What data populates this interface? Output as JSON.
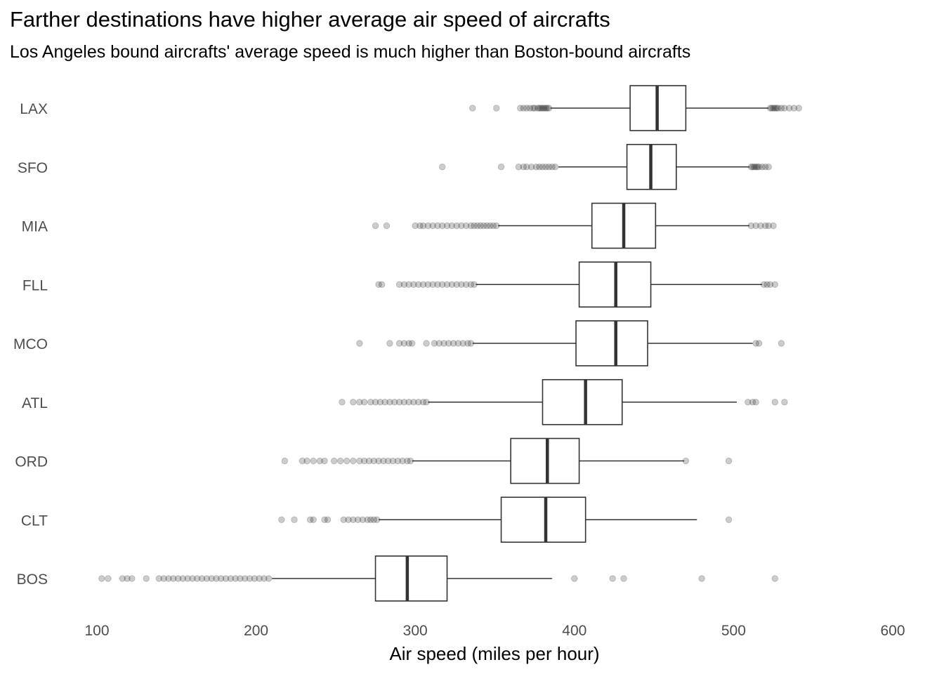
{
  "chart_data": {
    "type": "boxplot",
    "title": "Farther destinations have higher average air speed of aircrafts",
    "subtitle": "Los Angeles bound aircrafts' average speed is much higher than Boston-bound aircrafts",
    "xlabel": "Air speed (miles per hour)",
    "ylabel": "",
    "xlim": [
      100,
      600
    ],
    "xticks": [
      "100",
      "200",
      "300",
      "400",
      "500",
      "600"
    ],
    "grid": false,
    "series": [
      {
        "category": "LAX",
        "q1": 435,
        "median": 452,
        "q3": 470,
        "whisker_low": 385,
        "whisker_high": 522,
        "outliers": [
          336,
          351,
          366,
          368,
          370,
          372,
          374,
          375,
          377,
          378,
          379,
          380,
          381,
          382,
          383,
          384,
          523,
          524,
          525,
          526,
          527,
          528,
          530,
          532,
          535,
          538,
          541
        ]
      },
      {
        "category": "SFO",
        "q1": 433,
        "median": 448,
        "q3": 464,
        "whisker_low": 390,
        "whisker_high": 510,
        "outliers": [
          317,
          354,
          365,
          368,
          370,
          373,
          376,
          378,
          380,
          382,
          384,
          386,
          388,
          511,
          512,
          513,
          514,
          515,
          516,
          518,
          520,
          522
        ]
      },
      {
        "category": "MIA",
        "q1": 411,
        "median": 431,
        "q3": 451,
        "whisker_low": 352,
        "whisker_high": 510,
        "outliers": [
          275,
          282,
          300,
          303,
          305,
          308,
          311,
          314,
          317,
          320,
          323,
          326,
          329,
          332,
          335,
          337,
          339,
          341,
          343,
          345,
          347,
          349,
          351,
          511,
          514,
          517,
          520,
          522,
          525
        ]
      },
      {
        "category": "FLL",
        "q1": 403,
        "median": 426,
        "q3": 448,
        "whisker_low": 338,
        "whisker_high": 518,
        "outliers": [
          277,
          279,
          290,
          293,
          296,
          299,
          302,
          305,
          308,
          311,
          314,
          317,
          320,
          323,
          326,
          329,
          332,
          335,
          337,
          519,
          521,
          523,
          526
        ]
      },
      {
        "category": "MCO",
        "q1": 401,
        "median": 426,
        "q3": 446,
        "whisker_low": 336,
        "whisker_high": 512,
        "outliers": [
          265,
          284,
          290,
          293,
          296,
          298,
          307,
          312,
          315,
          318,
          321,
          324,
          327,
          330,
          333,
          335,
          514,
          516,
          530
        ]
      },
      {
        "category": "ATL",
        "q1": 380,
        "median": 407,
        "q3": 430,
        "whisker_low": 308,
        "whisker_high": 502,
        "outliers": [
          254,
          261,
          265,
          268,
          272,
          275,
          278,
          281,
          284,
          287,
          290,
          293,
          296,
          299,
          302,
          305,
          307,
          509,
          512,
          514,
          526,
          532
        ]
      },
      {
        "category": "ORD",
        "q1": 360,
        "median": 383,
        "q3": 403,
        "whisker_low": 298,
        "whisker_high": 469,
        "outliers": [
          218,
          229,
          232,
          236,
          240,
          243,
          249,
          253,
          257,
          261,
          265,
          268,
          271,
          274,
          277,
          280,
          283,
          286,
          289,
          292,
          295,
          297,
          470,
          497
        ]
      },
      {
        "category": "CLT",
        "q1": 354,
        "median": 382,
        "q3": 407,
        "whisker_low": 277,
        "whisker_high": 477,
        "outliers": [
          216,
          224,
          234,
          236,
          243,
          245,
          255,
          258,
          261,
          264,
          267,
          270,
          272,
          274,
          276,
          497
        ]
      },
      {
        "category": "BOS",
        "q1": 275,
        "median": 295,
        "q3": 320,
        "whisker_low": 210,
        "whisker_high": 386,
        "outliers": [
          103,
          107,
          116,
          119,
          122,
          131,
          139,
          142,
          145,
          148,
          151,
          154,
          157,
          160,
          163,
          166,
          169,
          172,
          175,
          178,
          181,
          184,
          187,
          190,
          193,
          196,
          199,
          202,
          205,
          208,
          400,
          424,
          431,
          480,
          526
        ]
      }
    ]
  }
}
